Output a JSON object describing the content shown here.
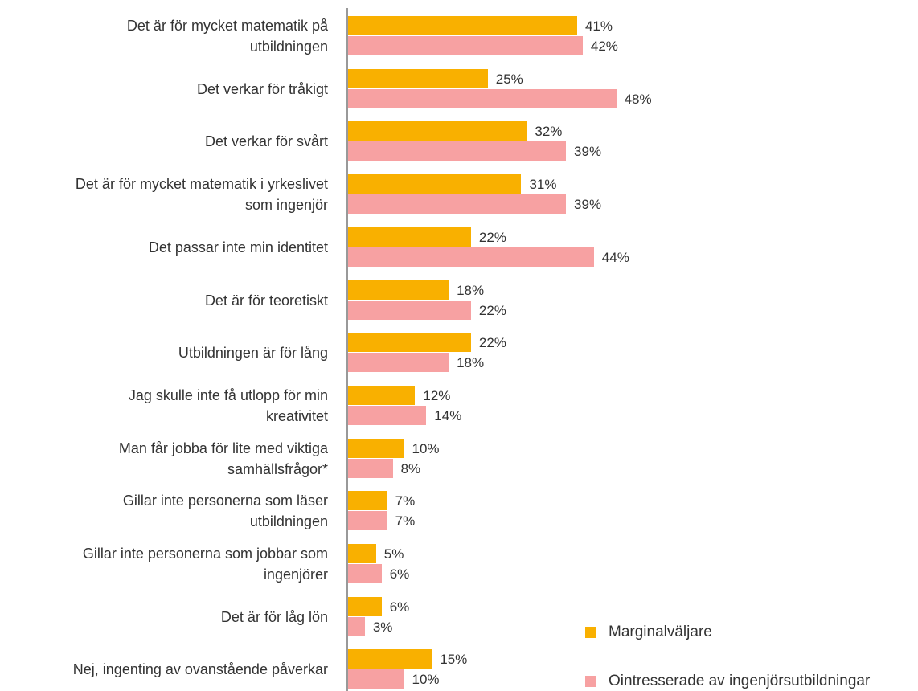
{
  "chart_data": {
    "type": "bar",
    "categories": [
      "Det är för mycket matematik på\nutbildningen",
      "Det verkar för tråkigt",
      "Det verkar för svårt",
      "Det är för mycket matematik i yrkeslivet\nsom ingenjör",
      "Det passar inte min identitet",
      "Det är för teoretiskt",
      "Utbildningen är för lång",
      "Jag skulle inte få utlopp för min\nkreativitet",
      "Man får jobba för lite med viktiga\nsamhällsfrågor*",
      "Gillar inte personerna som läser\nutbildningen",
      "Gillar inte personerna som jobbar som\ningenjörer",
      "Det är för låg lön",
      "Nej, ingenting av ovanstående påverkar"
    ],
    "series": [
      {
        "name": "Marginalväljare",
        "color": "#f9b000",
        "values": [
          41,
          25,
          32,
          31,
          22,
          18,
          22,
          12,
          10,
          7,
          5,
          6,
          15
        ],
        "value_labels": [
          "41%",
          "25%",
          "32%",
          "31%",
          "22%",
          "18%",
          "22%",
          "12%",
          "10%",
          "7%",
          "5%",
          "6%",
          "15%"
        ]
      },
      {
        "name": "Ointresserade av ingenjörsutbildningar",
        "color": "#f7a1a2",
        "values": [
          42,
          48,
          39,
          39,
          44,
          22,
          18,
          14,
          8,
          7,
          6,
          3,
          10
        ],
        "value_labels": [
          "42%",
          "48%",
          "39%",
          "39%",
          "44%",
          "22%",
          "18%",
          "14%",
          "8%",
          "7%",
          "6%",
          "3%",
          "10%"
        ]
      }
    ]
  }
}
